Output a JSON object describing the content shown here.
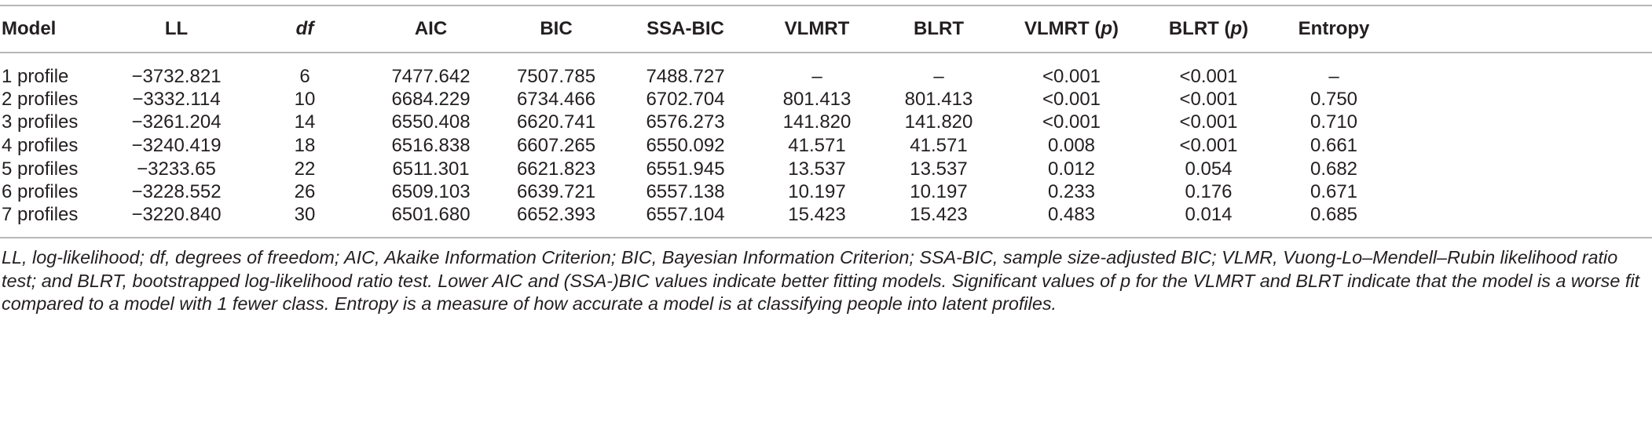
{
  "table": {
    "headers": {
      "model": "Model",
      "ll": "LL",
      "df": "df",
      "aic": "AIC",
      "bic": "BIC",
      "ssa_bic": "SSA-BIC",
      "vlmrt": "VLMRT",
      "blrt": "BLRT",
      "vlmrt_p_prefix": "VLMRT (",
      "vlmrt_p_var": "p",
      "vlmrt_p_suffix": ")",
      "blrt_p_prefix": "BLRT (",
      "blrt_p_var": "p",
      "blrt_p_suffix": ")",
      "entropy": "Entropy"
    },
    "rows": [
      [
        "1 profile",
        "−3732.821",
        "6",
        "7477.642",
        "7507.785",
        "7488.727",
        "–",
        "–",
        "<0.001",
        "<0.001",
        "–"
      ],
      [
        "2 profiles",
        "−3332.114",
        "10",
        "6684.229",
        "6734.466",
        "6702.704",
        "801.413",
        "801.413",
        "<0.001",
        "<0.001",
        "0.750"
      ],
      [
        "3 profiles",
        "−3261.204",
        "14",
        "6550.408",
        "6620.741",
        "6576.273",
        "141.820",
        "141.820",
        "<0.001",
        "<0.001",
        "0.710"
      ],
      [
        "4 profiles",
        "−3240.419",
        "18",
        "6516.838",
        "6607.265",
        "6550.092",
        "41.571",
        "41.571",
        "0.008",
        "<0.001",
        "0.661"
      ],
      [
        "5 profiles",
        "−3233.65",
        "22",
        "6511.301",
        "6621.823",
        "6551.945",
        "13.537",
        "13.537",
        "0.012",
        "0.054",
        "0.682"
      ],
      [
        "6 profiles",
        "−3228.552",
        "26",
        "6509.103",
        "6639.721",
        "6557.138",
        "10.197",
        "10.197",
        "0.233",
        "0.176",
        "0.671"
      ],
      [
        "7 profiles",
        "−3220.840",
        "30",
        "6501.680",
        "6652.393",
        "6557.104",
        "15.423",
        "15.423",
        "0.483",
        "0.014",
        "0.685"
      ]
    ]
  },
  "note": "LL, log-likelihood; df, degrees of freedom; AIC, Akaike Information Criterion; BIC, Bayesian Information Criterion; SSA-BIC, sample size-adjusted BIC; VLMR, Vuong-Lo–Mendell–Rubin likelihood ratio test; and BLRT, bootstrapped log-likelihood ratio test. Lower AIC and (SSA-)BIC values indicate better fitting models. Significant values of p for the VLMRT and BLRT indicate that the model is a worse fit compared to a model with 1 fewer class. Entropy is a measure of how accurate a model is at classifying people into latent profiles."
}
